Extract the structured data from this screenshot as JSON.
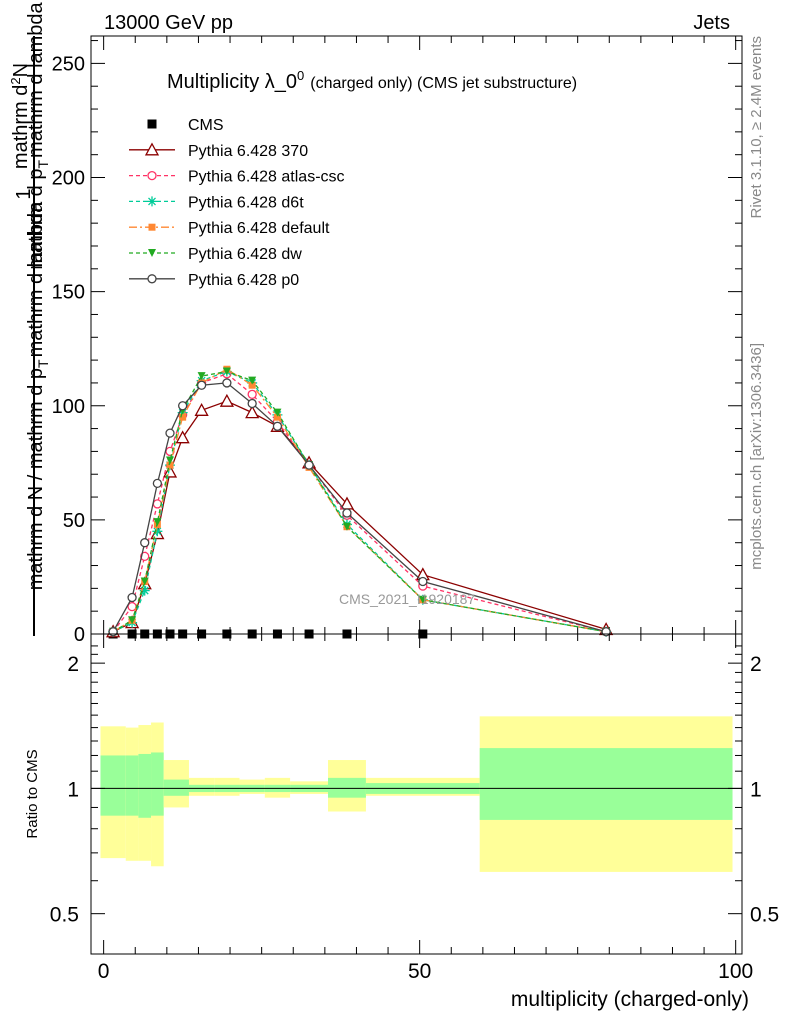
{
  "header": {
    "left": "13000 GeV pp",
    "right": "Jets"
  },
  "side_labels": {
    "rivet": "Rivet 3.1.10, ≥ 2.4M events",
    "mcplots": "mcplots.cern.ch [arXiv:1306.3436]"
  },
  "watermark": "CMS_2021_I1920187",
  "chart_data": [
    {
      "type": "line",
      "title_main": "Multiplicity λ_0",
      "title_sup": "0",
      "title_sub": "(charged only) (CMS jet substructure)",
      "ylabel_frac_top": "1",
      "ylabel_frac_bottom": "mathrm d N / mathrm d p",
      "ylabel_frac_bottom_sub": "T",
      "ylabel_frac_bottom_tail": "mathrm d lambda",
      "ylabel_right_top": "mathrm d",
      "ylabel_right_sup": "2",
      "ylabel_right_top_tail": "N",
      "ylabel_right_bottom": "mathrm d p",
      "ylabel_right_bottom_sub": "T",
      "ylabel_right_bottom_tail": "mathrm d lambda",
      "xlim": [
        -2,
        101
      ],
      "ylim": [
        0,
        262
      ],
      "yticks": [
        0,
        50,
        100,
        150,
        200,
        250
      ],
      "legend_position": "top-left",
      "series": [
        {
          "name": "CMS",
          "color": "#000000",
          "marker": "square",
          "x": [
            1.5,
            4.5,
            6.5,
            8.5,
            10.5,
            12.5,
            15.5,
            19.5,
            23.5,
            27.5,
            32.5,
            38.5,
            50.5
          ],
          "y": [
            0,
            0,
            0,
            0,
            0,
            0,
            0,
            0,
            0,
            0,
            0,
            0,
            0
          ]
        },
        {
          "name": "Pythia 6.428 370",
          "color": "#8b0000",
          "marker": "triangle-open",
          "dash": "",
          "x": [
            1.5,
            4.5,
            6.5,
            8.5,
            10.5,
            12.5,
            15.5,
            19.5,
            23.5,
            27.5,
            32.5,
            38.5,
            50.5,
            79.5
          ],
          "y": [
            1,
            5,
            22,
            44,
            71,
            86,
            98,
            102,
            97,
            91,
            75,
            57,
            26,
            2
          ]
        },
        {
          "name": "Pythia 6.428 atlas-csc",
          "color": "#ff3366",
          "marker": "circle-open",
          "dash": "4,3",
          "x": [
            1.5,
            4.5,
            6.5,
            8.5,
            10.5,
            12.5,
            15.5,
            19.5,
            23.5,
            27.5,
            32.5,
            38.5,
            50.5,
            79.5
          ],
          "y": [
            1,
            12,
            34,
            57,
            80,
            96,
            110,
            114,
            105,
            93,
            74,
            52,
            21,
            1
          ]
        },
        {
          "name": "Pythia 6.428 d6t",
          "color": "#00cc99",
          "marker": "star",
          "dash": "4,3",
          "x": [
            1.5,
            4.5,
            6.5,
            8.5,
            10.5,
            12.5,
            15.5,
            19.5,
            23.5,
            27.5,
            32.5,
            38.5,
            50.5,
            79.5
          ],
          "y": [
            1,
            5,
            19,
            45,
            74,
            97,
            111,
            115,
            110,
            96,
            74,
            48,
            15,
            1
          ]
        },
        {
          "name": "Pythia 6.428 default",
          "color": "#ff8833",
          "marker": "square-filled",
          "dash": "8,3,2,3",
          "x": [
            1.5,
            4.5,
            6.5,
            8.5,
            10.5,
            12.5,
            15.5,
            19.5,
            23.5,
            27.5,
            32.5,
            38.5,
            50.5,
            79.5
          ],
          "y": [
            1,
            6,
            23,
            48,
            74,
            95,
            110,
            116,
            109,
            95,
            73,
            47,
            15,
            1
          ]
        },
        {
          "name": "Pythia 6.428 dw",
          "color": "#22aa22",
          "marker": "triangle-down-filled",
          "dash": "4,3",
          "x": [
            1.5,
            4.5,
            6.5,
            8.5,
            10.5,
            12.5,
            15.5,
            19.5,
            23.5,
            27.5,
            32.5,
            38.5,
            50.5,
            79.5
          ],
          "y": [
            1,
            6,
            23,
            49,
            76,
            98,
            113,
            115,
            111,
            97,
            74,
            47,
            15,
            1
          ]
        },
        {
          "name": "Pythia 6.428 p0",
          "color": "#444444",
          "marker": "circle-open",
          "dash": "",
          "x": [
            1.5,
            4.5,
            6.5,
            8.5,
            10.5,
            12.5,
            15.5,
            19.5,
            23.5,
            27.5,
            32.5,
            38.5,
            50.5,
            79.5
          ],
          "y": [
            1,
            16,
            40,
            66,
            88,
            100,
            109,
            110,
            101,
            91,
            74,
            53,
            23,
            1
          ]
        }
      ]
    },
    {
      "type": "area",
      "ylabel": "Ratio to CMS",
      "xlabel": "multiplicity (charged-only)",
      "scale": "log",
      "ylim": [
        0.4,
        2.35
      ],
      "xlim": [
        -2,
        101
      ],
      "yticks": [
        0.5,
        1,
        2
      ],
      "xticks": [
        0,
        50,
        100
      ],
      "bins": [
        {
          "x": [
            -0.5,
            3.5
          ],
          "stat": [
            0.86,
            1.2
          ],
          "total": [
            0.68,
            1.41
          ]
        },
        {
          "x": [
            3.5,
            5.5
          ],
          "stat": [
            0.86,
            1.2
          ],
          "total": [
            0.67,
            1.4
          ]
        },
        {
          "x": [
            5.5,
            7.5
          ],
          "stat": [
            0.85,
            1.21
          ],
          "total": [
            0.67,
            1.42
          ]
        },
        {
          "x": [
            7.5,
            9.5
          ],
          "stat": [
            0.86,
            1.22
          ],
          "total": [
            0.65,
            1.44
          ]
        },
        {
          "x": [
            9.5,
            13.5
          ],
          "stat": [
            0.96,
            1.05
          ],
          "total": [
            0.9,
            1.17
          ]
        },
        {
          "x": [
            13.5,
            17.5
          ],
          "stat": [
            0.98,
            1.02
          ],
          "total": [
            0.96,
            1.06
          ]
        },
        {
          "x": [
            17.5,
            21.5
          ],
          "stat": [
            0.98,
            1.02
          ],
          "total": [
            0.96,
            1.06
          ]
        },
        {
          "x": [
            21.5,
            25.5
          ],
          "stat": [
            0.98,
            1.02
          ],
          "total": [
            0.97,
            1.05
          ]
        },
        {
          "x": [
            25.5,
            29.5
          ],
          "stat": [
            0.98,
            1.02
          ],
          "total": [
            0.95,
            1.06
          ]
        },
        {
          "x": [
            29.5,
            35.5
          ],
          "stat": [
            0.98,
            1.02
          ],
          "total": [
            0.97,
            1.04
          ]
        },
        {
          "x": [
            35.5,
            41.5
          ],
          "stat": [
            0.95,
            1.06
          ],
          "total": [
            0.88,
            1.17
          ]
        },
        {
          "x": [
            41.5,
            59.5
          ],
          "stat": [
            0.97,
            1.03
          ],
          "total": [
            0.96,
            1.06
          ]
        },
        {
          "x": [
            59.5,
            99.5
          ],
          "stat": [
            0.84,
            1.25
          ],
          "total": [
            0.63,
            1.49
          ]
        }
      ],
      "stat_color": "#99ff99",
      "total_color": "#ffff99",
      "reference_line": 1
    }
  ]
}
